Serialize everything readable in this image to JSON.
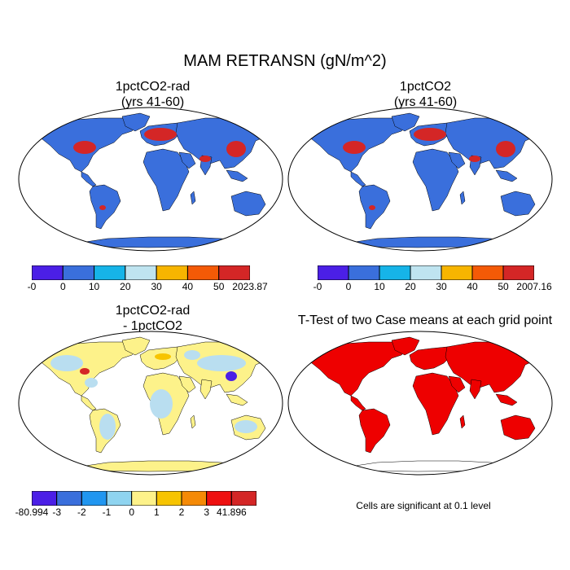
{
  "title": "MAM RETRANSN (gN/m^2)",
  "panels": [
    {
      "title_line1": "1pctCO2-rad",
      "title_line2": "(yrs 41-60)",
      "colorbar": {
        "labels": [
          "-0",
          "0",
          "10",
          "20",
          "30",
          "40",
          "50",
          "2023.87"
        ],
        "colors": [
          "#4b1fe6",
          "#3a6fdc",
          "#16b4e8",
          "#bfe4f0",
          "#f7b500",
          "#f45a06",
          "#d42626"
        ]
      },
      "background_color": "#3a6fdc",
      "hotspot_color": "#d42626"
    },
    {
      "title_line1": "1pctCO2",
      "title_line2": "(yrs 41-60)",
      "colorbar": {
        "labels": [
          "-0",
          "0",
          "10",
          "20",
          "30",
          "40",
          "50",
          "2007.16"
        ],
        "colors": [
          "#4b1fe6",
          "#3a6fdc",
          "#16b4e8",
          "#bfe4f0",
          "#f7b500",
          "#f45a06",
          "#d42626"
        ]
      },
      "background_color": "#3a6fdc",
      "hotspot_color": "#d42626"
    },
    {
      "title_line1": "1pctCO2-rad",
      "title_line2": "- 1pctCO2",
      "colorbar": {
        "labels": [
          "-80.994",
          "-3",
          "-2",
          "-1",
          "0",
          "1",
          "2",
          "3",
          "41.896"
        ],
        "colors": [
          "#4b1fe6",
          "#3a6fdc",
          "#2196f0",
          "#8fd4f0",
          "#fdf28a",
          "#f7c400",
          "#f58a06",
          "#ee1010",
          "#d42626"
        ]
      },
      "background_color": "#fdf28a",
      "secondary_color": "#b9def0"
    },
    {
      "title_line1": "T-Test of two Case means at each grid point",
      "note": "Cells are significant at 0.1 level",
      "background_color": "#ee0000"
    }
  ]
}
